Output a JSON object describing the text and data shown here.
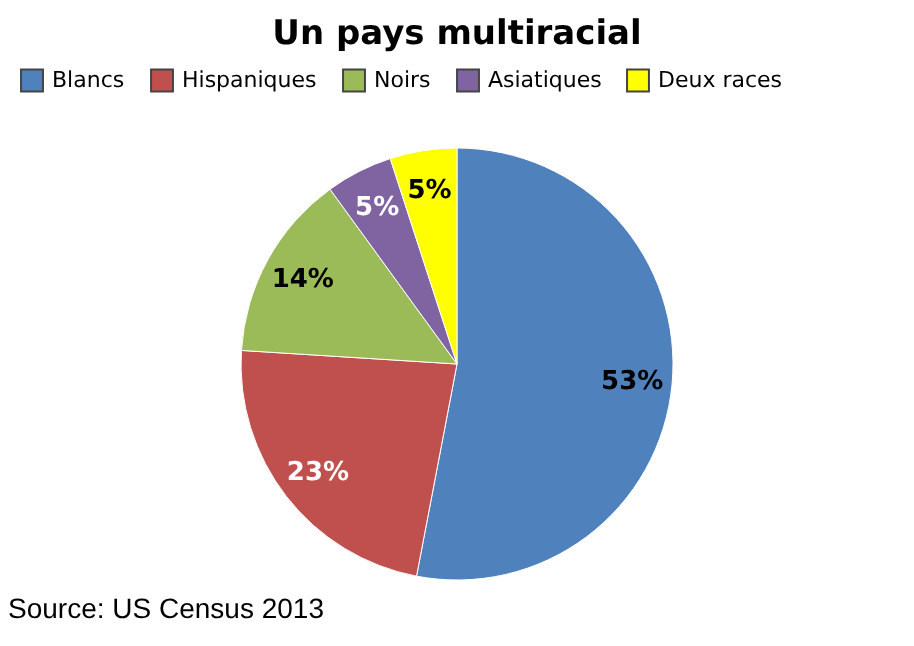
{
  "chart_data": {
    "type": "pie",
    "title": "Un pays multiracial",
    "categories": [
      "Blancs",
      "Hispaniques",
      "Noirs",
      "Asiatiques",
      "Deux races"
    ],
    "values": [
      53,
      23,
      14,
      5,
      5
    ],
    "colors": [
      "#4f81bd",
      "#c0504d",
      "#9bbb59",
      "#8064a2",
      "#ffff00"
    ],
    "value_labels": [
      "53%",
      "23%",
      "14%",
      "5%",
      "5%"
    ],
    "legend": "top",
    "annotations": [
      "Source: US Census 2013"
    ]
  }
}
